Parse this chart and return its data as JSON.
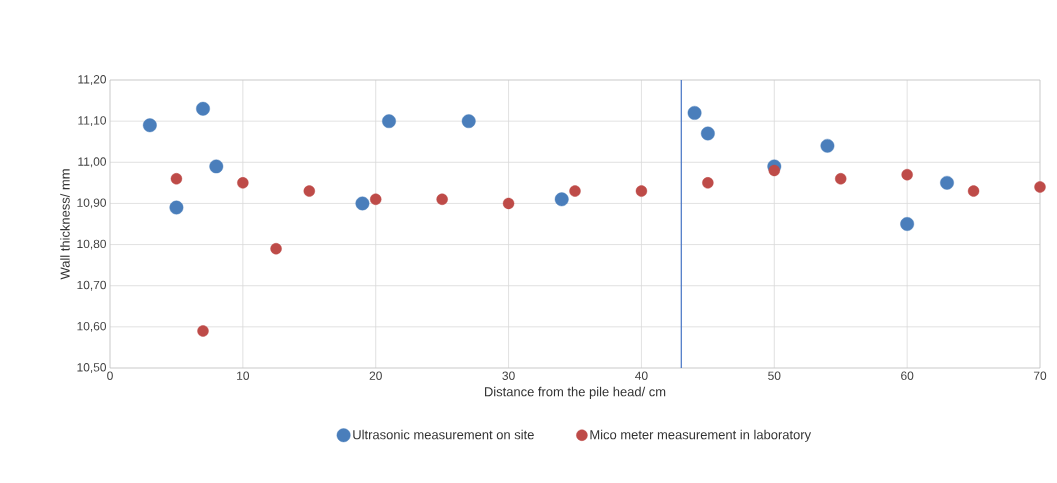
{
  "chart_data": {
    "type": "scatter",
    "xlabel": "Distance from the pile head/ cm",
    "ylabel": "Wall thickness/ mm",
    "series": [
      {
        "name": "Ultrasonic measurement on site",
        "color": "#4a7ebb",
        "x": [
          3,
          5,
          7,
          8,
          19,
          21,
          27,
          34,
          44,
          45,
          50,
          54,
          60,
          63
        ],
        "values": [
          11.09,
          10.89,
          11.13,
          10.99,
          10.9,
          11.1,
          11.1,
          10.91,
          11.12,
          11.07,
          10.99,
          11.04,
          10.85,
          10.95
        ]
      },
      {
        "name": "Mico meter measurement in laboratory",
        "color": "#be4b48",
        "x": [
          5,
          7,
          10,
          12.5,
          15,
          20,
          25,
          30,
          35,
          40,
          45,
          50,
          55,
          60,
          65,
          70
        ],
        "values": [
          10.96,
          10.59,
          10.95,
          10.79,
          10.93,
          10.91,
          10.91,
          10.9,
          10.93,
          10.93,
          10.95,
          10.98,
          10.96,
          10.97,
          10.93,
          10.94
        ]
      }
    ],
    "xlim": [
      0,
      70
    ],
    "xticks": [
      0,
      10,
      20,
      30,
      40,
      50,
      60,
      70
    ],
    "ylim": [
      10.5,
      11.2
    ],
    "yticks": [
      {
        "value": 10.5,
        "label": "10,50"
      },
      {
        "value": 10.6,
        "label": "10,60"
      },
      {
        "value": 10.7,
        "label": "10,70"
      },
      {
        "value": 10.8,
        "label": "10,80"
      },
      {
        "value": 10.9,
        "label": "10,90"
      },
      {
        "value": 11.0,
        "label": "11,00"
      },
      {
        "value": 11.1,
        "label": "11,10"
      },
      {
        "value": 11.2,
        "label": "11,20"
      }
    ],
    "ref_lines": [
      {
        "axis": "x",
        "value": 43,
        "color": "#4472c4"
      }
    ],
    "grid": true,
    "legend": "bottom"
  }
}
